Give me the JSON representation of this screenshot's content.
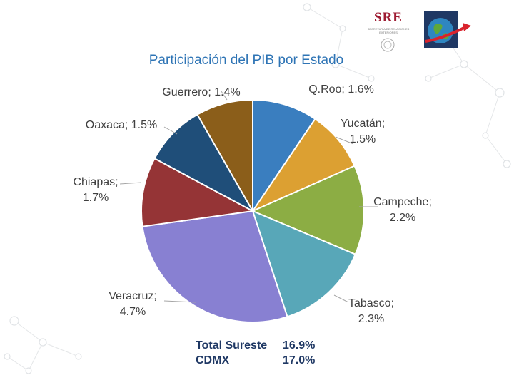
{
  "header": {
    "logo_text": "SRE",
    "logo_subtext": "SECRETARÍA DE RELACIONES EXTERIORES"
  },
  "chart_data": {
    "type": "pie",
    "title": "Participación del PIB por Estado",
    "slices": [
      {
        "label": "Q.Roo; 1.6%",
        "value": 1.6,
        "color": "#3a7ebf"
      },
      {
        "label": "Yucatán; 1.5%",
        "value": 1.5,
        "color": "#dca032"
      },
      {
        "label": "Campeche; 2.2%",
        "value": 2.2,
        "color": "#8cad44"
      },
      {
        "label": "Tabasco; 2.3%",
        "value": 2.3,
        "color": "#58a7b8"
      },
      {
        "label": "Veracruz; 4.7%",
        "value": 4.7,
        "color": "#8880d2"
      },
      {
        "label": "Chiapas; 1.7%",
        "value": 1.7,
        "color": "#953436"
      },
      {
        "label": "Oaxaca; 1.5%",
        "value": 1.5,
        "color": "#1f4e79"
      },
      {
        "label": "Guerrero; 1.4%",
        "value": 1.4,
        "color": "#8b5e1a"
      }
    ],
    "totals": [
      {
        "label": "Total Sureste",
        "value": "16.9%"
      },
      {
        "label": "CDMX",
        "value": "17.0%"
      }
    ]
  }
}
